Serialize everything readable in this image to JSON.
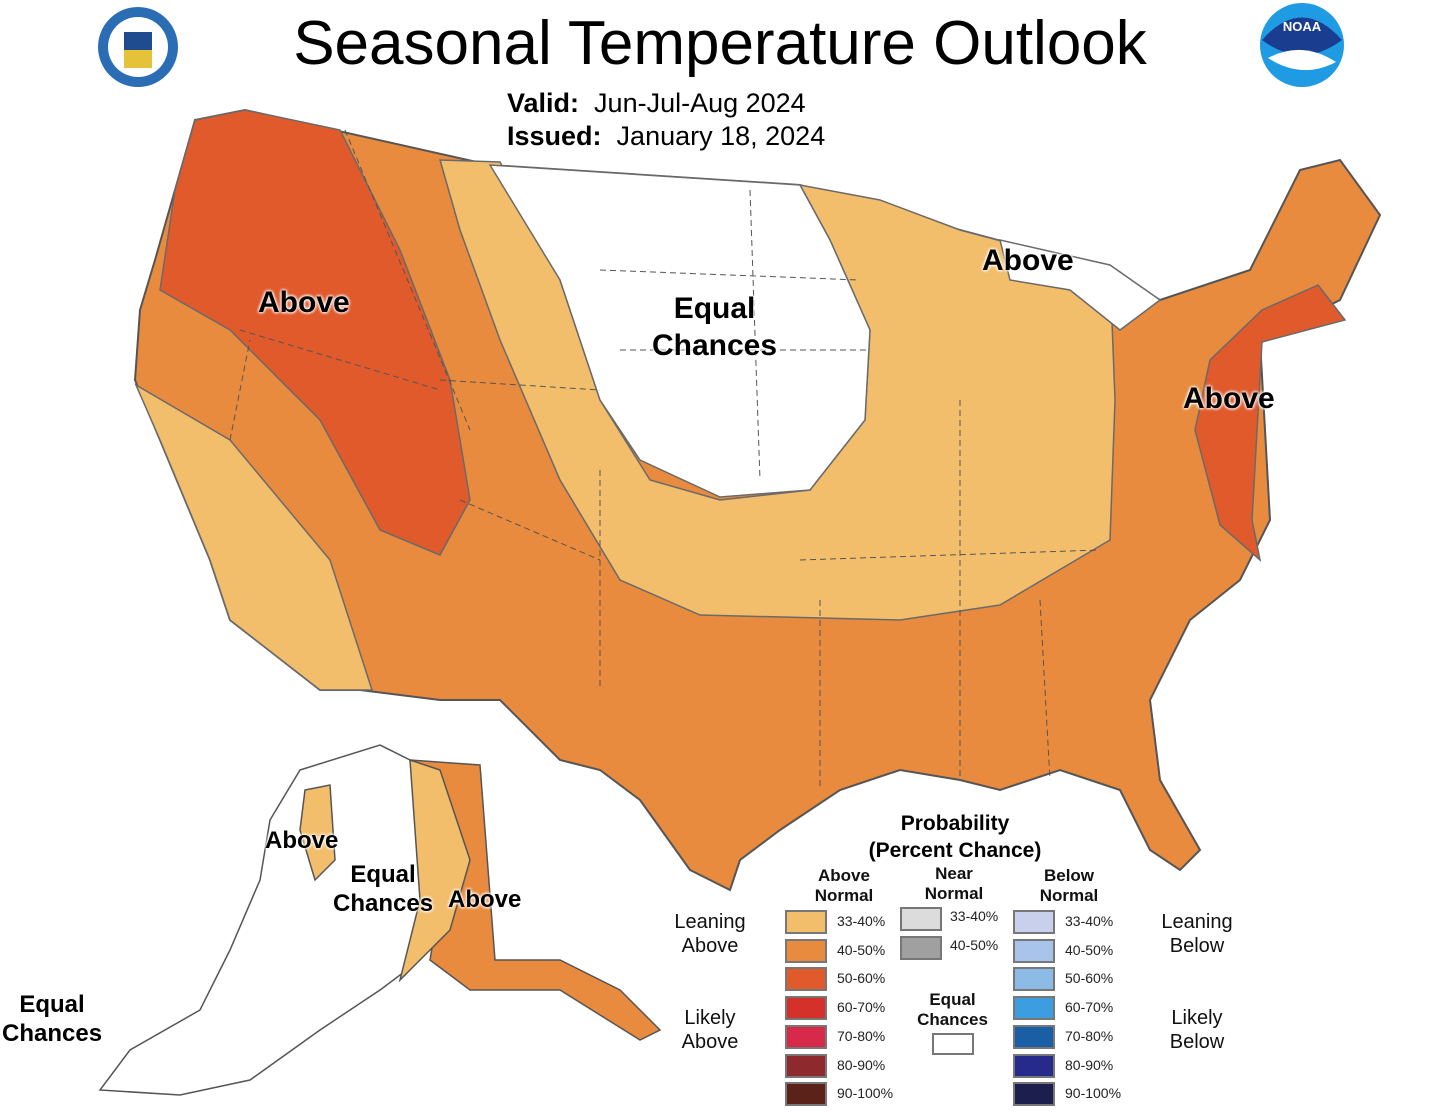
{
  "title": "Seasonal Temperature Outlook",
  "valid_label": "Valid:",
  "valid_value": "Jun-Jul-Aug 2024",
  "issued_label": "Issued:",
  "issued_value": "January 18, 2024",
  "logos": {
    "left": "U.S. Department of Commerce seal",
    "right": "NOAA"
  },
  "map_labels": {
    "nw": "Above",
    "central": [
      "Equal",
      "Chances"
    ],
    "great_lakes": "Above",
    "ne": "Above",
    "ak_west": "Above",
    "ak_ec": [
      "Equal",
      "Chances"
    ],
    "ak_east": "Above",
    "hawaii": [
      "Equal",
      "Chances"
    ]
  },
  "colors": {
    "lean_above_33_40": "#f2be6c",
    "lean_above_40_50": "#e98b3e",
    "likely_above_50_60": "#e05a2c",
    "equal_chances": "#ffffff",
    "borders": "#555555"
  },
  "legend": {
    "title": [
      "Probability",
      "(Percent Chance)"
    ],
    "columns": [
      {
        "label": [
          "Above",
          "Normal"
        ]
      },
      {
        "label": [
          "Near",
          "Normal"
        ]
      },
      {
        "label": [
          "Below",
          "Normal"
        ]
      }
    ],
    "groups": {
      "leaning_above": [
        "Leaning",
        "Above"
      ],
      "likely_above": [
        "Likely",
        "Above"
      ],
      "leaning_below": [
        "Leaning",
        "Below"
      ],
      "likely_below": [
        "Likely",
        "Below"
      ],
      "equal": [
        "Equal",
        "Chances"
      ]
    },
    "above": [
      {
        "range": "33-40%",
        "color": "#f2be6c"
      },
      {
        "range": "40-50%",
        "color": "#e98b3e"
      },
      {
        "range": "50-60%",
        "color": "#e05a2c"
      },
      {
        "range": "60-70%",
        "color": "#d6302a"
      },
      {
        "range": "70-80%",
        "color": "#d72a4a"
      },
      {
        "range": "80-90%",
        "color": "#8e2a2e"
      },
      {
        "range": "90-100%",
        "color": "#5a2218"
      }
    ],
    "near": [
      {
        "range": "33-40%",
        "color": "#dcdcdc"
      },
      {
        "range": "40-50%",
        "color": "#a0a0a0"
      }
    ],
    "below": [
      {
        "range": "33-40%",
        "color": "#c8d0ec"
      },
      {
        "range": "40-50%",
        "color": "#a8c4ea"
      },
      {
        "range": "50-60%",
        "color": "#8cbce6"
      },
      {
        "range": "60-70%",
        "color": "#3c9ee0"
      },
      {
        "range": "70-80%",
        "color": "#1a5fa6"
      },
      {
        "range": "80-90%",
        "color": "#262a8a"
      },
      {
        "range": "90-100%",
        "color": "#1c1e4e"
      }
    ]
  }
}
